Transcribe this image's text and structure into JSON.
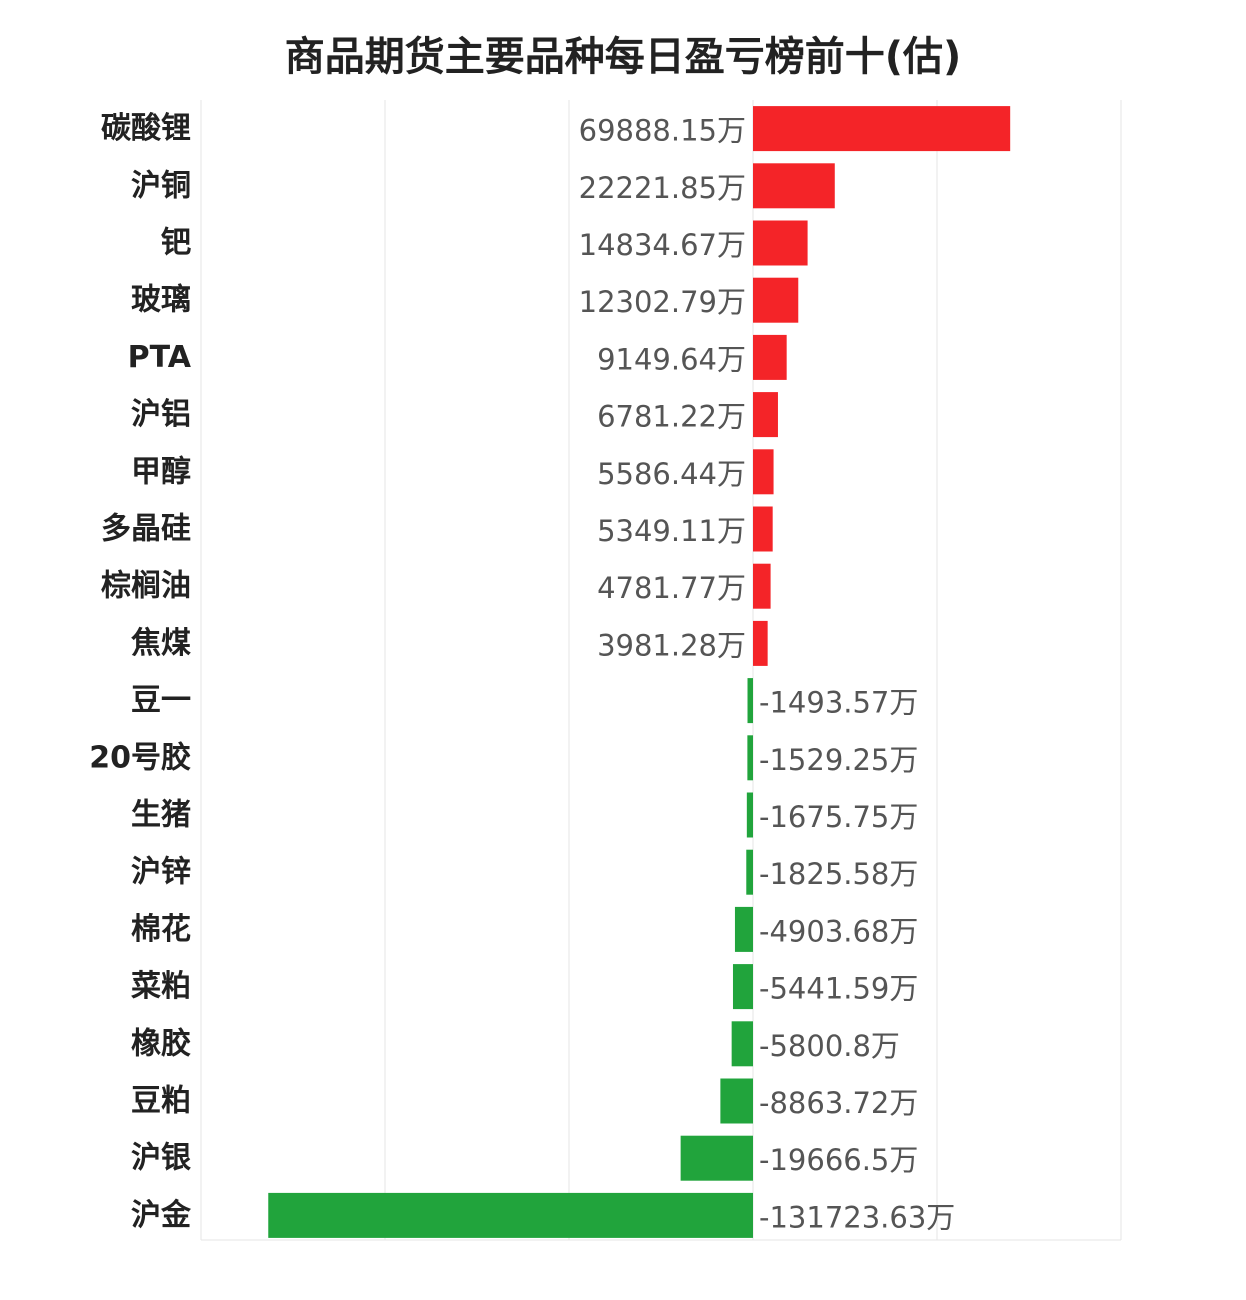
{
  "chart_data": {
    "type": "bar",
    "orientation": "horizontal",
    "title": "商品期货主要品种每日盈亏榜前十(估)",
    "unit": "万",
    "categories": [
      "碳酸锂",
      "沪铜",
      "钯",
      "玻璃",
      "PTA",
      "沪铝",
      "甲醇",
      "多晶硅",
      "棕榈油",
      "焦煤",
      "豆一",
      "20号胶",
      "生猪",
      "沪锌",
      "棉花",
      "菜粕",
      "橡胶",
      "豆粕",
      "沪银",
      "沪金"
    ],
    "values": [
      69888.15,
      22221.85,
      14834.67,
      12302.79,
      9149.64,
      6781.22,
      5586.44,
      5349.11,
      4781.77,
      3981.28,
      -1493.57,
      -1529.25,
      -1675.75,
      -1825.58,
      -4903.68,
      -5441.59,
      -5800.8,
      -8863.72,
      -19666.5,
      -131723.63
    ],
    "value_labels": [
      "69888.15万",
      "22221.85万",
      "14834.67万",
      "12302.79万",
      "9149.64万",
      "6781.22万",
      "5586.44万",
      "5349.11万",
      "4781.77万",
      "3981.28万",
      "-1493.57万",
      "-1529.25万",
      "-1675.75万",
      "-1825.58万",
      "-4903.68万",
      "-5441.59万",
      "-5800.8万",
      "-8863.72万",
      "-19666.5万",
      "-131723.63万"
    ],
    "xlim": [
      -150000,
      100000
    ],
    "grid": true,
    "colors": {
      "positive": "#f42428",
      "negative": "#21a43c",
      "grid": "#e6e6e6"
    }
  }
}
